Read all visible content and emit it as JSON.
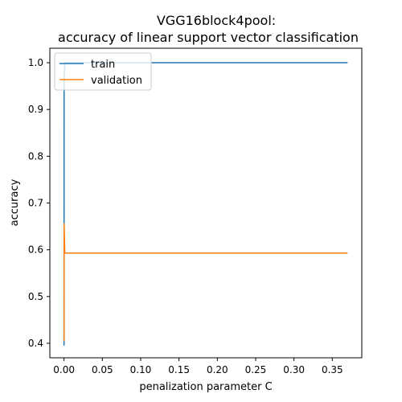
{
  "chart_data": {
    "type": "line",
    "title_lines": [
      "VGG16block4pool:",
      "accuracy of linear support vector classification"
    ],
    "xlabel": "penalization parameter C",
    "ylabel": "accuracy",
    "xlim": [
      -0.0185,
      0.3885
    ],
    "ylim": [
      0.369,
      1.031
    ],
    "xticks": [
      0.0,
      0.05,
      0.1,
      0.15,
      0.2,
      0.25,
      0.3,
      0.35
    ],
    "xtick_labels": [
      "0.00",
      "0.05",
      "0.10",
      "0.15",
      "0.20",
      "0.25",
      "0.30",
      "0.35"
    ],
    "yticks": [
      0.4,
      0.5,
      0.6,
      0.7,
      0.8,
      0.9,
      1.0
    ],
    "ytick_labels": [
      "0.4",
      "0.5",
      "0.6",
      "0.7",
      "0.8",
      "0.9",
      "1.0"
    ],
    "grid": false,
    "legend_position": "top-left",
    "x": [
      1e-05,
      0.0001,
      0.001,
      0.37
    ],
    "series": [
      {
        "name": "train",
        "color": "#1f77b4",
        "values": [
          0.395,
          0.96,
          1.0,
          1.0
        ]
      },
      {
        "name": "validation",
        "color": "#ff7f0e",
        "values": [
          0.405,
          0.655,
          0.593,
          0.593
        ]
      }
    ]
  }
}
